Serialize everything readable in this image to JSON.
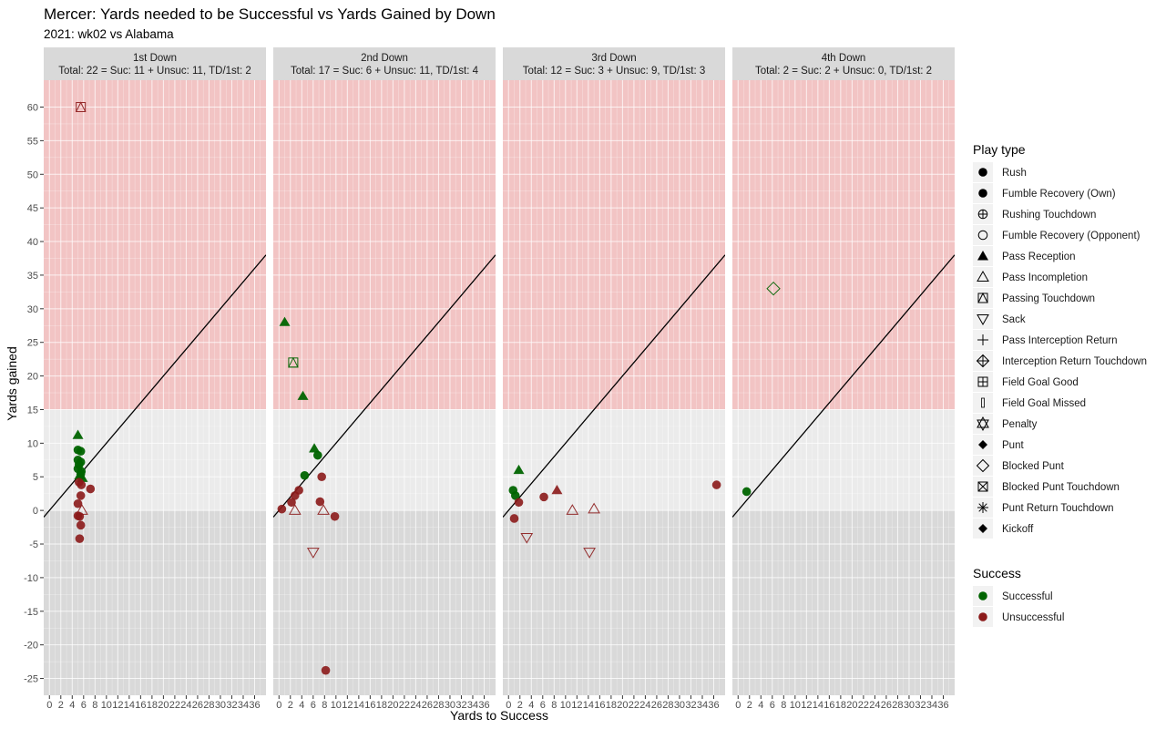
{
  "chart_data": {
    "type": "scatter",
    "title": "Mercer: Yards needed to be Successful vs Yards Gained by Down",
    "subtitle": "2021: wk02 vs Alabama",
    "xlabel": "Yards to Success",
    "ylabel": "Yards gained",
    "xlim": [
      -1,
      38
    ],
    "ylim": [
      -27.5,
      64
    ],
    "x_ticks": [
      0,
      2,
      4,
      6,
      8,
      10,
      12,
      14,
      16,
      18,
      20,
      22,
      24,
      26,
      28,
      30,
      32,
      34,
      36
    ],
    "x_tick_labels": [
      "0",
      "2",
      "4",
      "6",
      "8",
      "10",
      "12",
      "14",
      "16",
      "18",
      "20",
      "22",
      "24",
      "26",
      "28",
      "30",
      "32",
      "34",
      "36"
    ],
    "y_ticks": [
      60,
      55,
      50,
      45,
      40,
      35,
      30,
      25,
      20,
      15,
      10,
      5,
      0,
      -5,
      -10,
      -15,
      -20,
      -25
    ],
    "y_tick_labels": [
      "60",
      "55",
      "50",
      "45",
      "40",
      "35",
      "30",
      "25",
      "20",
      "15",
      "10",
      "5",
      "0",
      "-5",
      "-10",
      "-15",
      "-20",
      "-25"
    ],
    "bands": [
      {
        "from": 15,
        "to": 64,
        "color": "#f2c4c4"
      },
      {
        "from": 0,
        "to": 15,
        "color": "#ebebeb"
      },
      {
        "from": -27.5,
        "to": 0,
        "color": "#d9d9d9"
      }
    ],
    "reference_line": {
      "slope": 1,
      "intercept": 0
    },
    "grid": true,
    "colors": {
      "Successful": "#006400",
      "Unsuccessful": "#8b1a1a"
    },
    "panels": [
      {
        "strip_title": "1st Down",
        "strip_summary": "Total: 22 = Suc: 11 + Unsuc: 11, TD/1st: 2",
        "points": [
          {
            "x": 5.5,
            "y": 60,
            "type": "Passing Touchdown",
            "success": "Unsuccessful"
          },
          {
            "x": 5.0,
            "y": 11.2,
            "type": "Pass Reception",
            "success": "Successful"
          },
          {
            "x": 5.0,
            "y": 9.0,
            "type": "Rush",
            "success": "Successful"
          },
          {
            "x": 5.5,
            "y": 8.8,
            "type": "Rush",
            "success": "Successful"
          },
          {
            "x": 5.0,
            "y": 7.5,
            "type": "Rush",
            "success": "Successful"
          },
          {
            "x": 5.5,
            "y": 7.2,
            "type": "Rush",
            "success": "Successful"
          },
          {
            "x": 5.2,
            "y": 6.8,
            "type": "Rush",
            "success": "Successful"
          },
          {
            "x": 5.0,
            "y": 6.2,
            "type": "Rush",
            "success": "Successful"
          },
          {
            "x": 5.6,
            "y": 5.8,
            "type": "Rush",
            "success": "Successful"
          },
          {
            "x": 5.3,
            "y": 5.2,
            "type": "Pass Reception",
            "success": "Successful"
          },
          {
            "x": 5.8,
            "y": 4.8,
            "type": "Pass Reception",
            "success": "Successful"
          },
          {
            "x": 5.5,
            "y": 5.4,
            "type": "Rush",
            "success": "Successful"
          },
          {
            "x": 5.2,
            "y": 4.2,
            "type": "Rush",
            "success": "Unsuccessful"
          },
          {
            "x": 5.6,
            "y": 3.8,
            "type": "Rush",
            "success": "Unsuccessful"
          },
          {
            "x": 7.2,
            "y": 3.2,
            "type": "Rush",
            "success": "Unsuccessful"
          },
          {
            "x": 5.5,
            "y": 2.2,
            "type": "Rush",
            "success": "Unsuccessful"
          },
          {
            "x": 5.0,
            "y": 1.0,
            "type": "Rush",
            "success": "Unsuccessful"
          },
          {
            "x": 5.7,
            "y": 0.0,
            "type": "Pass Incompletion",
            "success": "Unsuccessful"
          },
          {
            "x": 5.0,
            "y": -0.8,
            "type": "Rush",
            "success": "Unsuccessful"
          },
          {
            "x": 5.3,
            "y": -0.9,
            "type": "Rush",
            "success": "Unsuccessful"
          },
          {
            "x": 5.5,
            "y": -2.2,
            "type": "Rush",
            "success": "Unsuccessful"
          },
          {
            "x": 5.3,
            "y": -4.2,
            "type": "Rush",
            "success": "Unsuccessful"
          }
        ]
      },
      {
        "strip_title": "2nd Down",
        "strip_summary": "Total: 17 = Suc: 6 + Unsuc: 11, TD/1st: 4",
        "points": [
          {
            "x": 1.0,
            "y": 28.0,
            "type": "Pass Reception",
            "success": "Successful"
          },
          {
            "x": 2.5,
            "y": 22.0,
            "type": "Passing Touchdown",
            "success": "Successful"
          },
          {
            "x": 4.2,
            "y": 17.0,
            "type": "Pass Reception",
            "success": "Successful"
          },
          {
            "x": 6.2,
            "y": 9.2,
            "type": "Pass Reception",
            "success": "Successful"
          },
          {
            "x": 6.8,
            "y": 8.2,
            "type": "Rush",
            "success": "Successful"
          },
          {
            "x": 4.5,
            "y": 5.2,
            "type": "Rush",
            "success": "Successful"
          },
          {
            "x": 7.5,
            "y": 5.0,
            "type": "Rush",
            "success": "Unsuccessful"
          },
          {
            "x": 3.5,
            "y": 3.0,
            "type": "Rush",
            "success": "Unsuccessful"
          },
          {
            "x": 2.8,
            "y": 2.2,
            "type": "Rush",
            "success": "Unsuccessful"
          },
          {
            "x": 2.2,
            "y": 1.2,
            "type": "Rush",
            "success": "Unsuccessful"
          },
          {
            "x": 7.2,
            "y": 1.3,
            "type": "Rush",
            "success": "Unsuccessful"
          },
          {
            "x": 0.5,
            "y": 0.2,
            "type": "Rush",
            "success": "Unsuccessful"
          },
          {
            "x": 2.8,
            "y": 0.0,
            "type": "Pass Incompletion",
            "success": "Unsuccessful"
          },
          {
            "x": 7.8,
            "y": 0.0,
            "type": "Pass Incompletion",
            "success": "Unsuccessful"
          },
          {
            "x": 9.8,
            "y": -0.9,
            "type": "Rush",
            "success": "Unsuccessful"
          },
          {
            "x": 6.0,
            "y": -6.2,
            "type": "Sack",
            "success": "Unsuccessful"
          },
          {
            "x": 8.2,
            "y": -23.8,
            "type": "Rush",
            "success": "Unsuccessful"
          }
        ]
      },
      {
        "strip_title": "3rd Down",
        "strip_summary": "Total: 12 = Suc: 3 + Unsuc: 9, TD/1st: 3",
        "points": [
          {
            "x": 1.8,
            "y": 6.0,
            "type": "Pass Reception",
            "success": "Successful"
          },
          {
            "x": 0.8,
            "y": 3.0,
            "type": "Rush",
            "success": "Successful"
          },
          {
            "x": 1.2,
            "y": 2.2,
            "type": "Rush",
            "success": "Successful"
          },
          {
            "x": 8.5,
            "y": 3.0,
            "type": "Pass Reception",
            "success": "Unsuccessful"
          },
          {
            "x": 6.2,
            "y": 2.0,
            "type": "Rush",
            "success": "Unsuccessful"
          },
          {
            "x": 1.8,
            "y": 1.2,
            "type": "Rush",
            "success": "Unsuccessful"
          },
          {
            "x": 11.2,
            "y": 0.0,
            "type": "Pass Incompletion",
            "success": "Unsuccessful"
          },
          {
            "x": 15.0,
            "y": 0.2,
            "type": "Pass Incompletion",
            "success": "Unsuccessful"
          },
          {
            "x": 1.0,
            "y": -1.2,
            "type": "Rush",
            "success": "Unsuccessful"
          },
          {
            "x": 3.2,
            "y": -4.0,
            "type": "Sack",
            "success": "Unsuccessful"
          },
          {
            "x": 14.2,
            "y": -6.2,
            "type": "Sack",
            "success": "Unsuccessful"
          },
          {
            "x": 36.5,
            "y": 3.8,
            "type": "Rush",
            "success": "Unsuccessful"
          }
        ]
      },
      {
        "strip_title": "4th Down",
        "strip_summary": "Total: 2 = Suc: 2 + Unsuc: 0, TD/1st: 2",
        "points": [
          {
            "x": 6.2,
            "y": 33.0,
            "type": "Blocked Punt",
            "success": "Successful"
          },
          {
            "x": 1.5,
            "y": 2.8,
            "type": "Rush",
            "success": "Successful"
          }
        ]
      }
    ],
    "legend": {
      "position": "right",
      "play_type_title": "Play type",
      "play_types": [
        {
          "label": "Rush",
          "symbol": "filled-circle"
        },
        {
          "label": "Fumble Recovery (Own)",
          "symbol": "filled-circle"
        },
        {
          "label": "Rushing Touchdown",
          "symbol": "circle-plus"
        },
        {
          "label": "Fumble Recovery (Opponent)",
          "symbol": "open-circle"
        },
        {
          "label": "Pass Reception",
          "symbol": "filled-triangle"
        },
        {
          "label": "Pass Incompletion",
          "symbol": "open-triangle"
        },
        {
          "label": "Passing Touchdown",
          "symbol": "square-triangle"
        },
        {
          "label": "Sack",
          "symbol": "open-triangle-down"
        },
        {
          "label": "Pass Interception Return",
          "symbol": "plus"
        },
        {
          "label": "Interception Return Touchdown",
          "symbol": "diamond-plus"
        },
        {
          "label": "Field Goal Good",
          "symbol": "square-plus"
        },
        {
          "label": "Field Goal Missed",
          "symbol": "thin-rect"
        },
        {
          "label": "Penalty",
          "symbol": "star-of-david"
        },
        {
          "label": "Punt",
          "symbol": "filled-diamond"
        },
        {
          "label": "Blocked Punt",
          "symbol": "open-diamond"
        },
        {
          "label": "Blocked Punt Touchdown",
          "symbol": "square-x"
        },
        {
          "label": "Punt Return Touchdown",
          "symbol": "asterisk"
        },
        {
          "label": "Kickoff",
          "symbol": "filled-diamond"
        }
      ],
      "success_title": "Success",
      "success_items": [
        {
          "label": "Successful",
          "color": "#006400"
        },
        {
          "label": "Unsuccessful",
          "color": "#8b1a1a"
        }
      ]
    }
  }
}
